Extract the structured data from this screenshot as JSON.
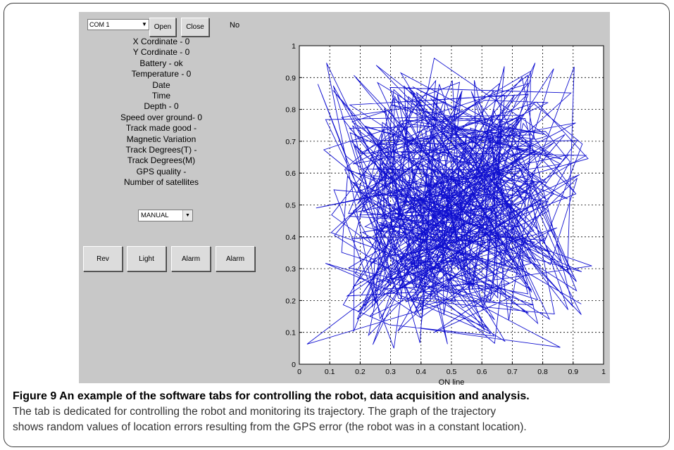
{
  "controls": {
    "port_value": "COM 1",
    "open_label": "Open",
    "close_label": "Close",
    "status_label": "No",
    "mode_value": "MANUAL",
    "rev_label": "Rev",
    "light_label": "Light",
    "alarm1_label": "Alarm",
    "alarm2_label": "Alarm"
  },
  "info_lines": [
    "X Cordinate - 0",
    "Y Cordinate - 0",
    "Battery - ok",
    "Temperature - 0",
    "Date",
    "Time",
    "Depth - 0",
    "Speed over ground- 0",
    "Track made good -",
    "Magnetic Variation",
    "Track Degrees(T) -",
    "Track Degrees(M)",
    "GPS quality -",
    "Number of satellites"
  ],
  "plot": {
    "xlabel": "ON line",
    "xlim": [
      0,
      1
    ],
    "ylim": [
      0,
      1
    ],
    "xticks": [
      "0",
      "0.1",
      "0.2",
      "0.3",
      "0.4",
      "0.5",
      "0.6",
      "0.7",
      "0.8",
      "0.9",
      "1"
    ],
    "yticks": [
      "0",
      "0.1",
      "0.2",
      "0.3",
      "0.4",
      "0.5",
      "0.6",
      "0.7",
      "0.8",
      "0.9",
      "1"
    ],
    "grid": true,
    "line_color": "#1010d0",
    "trajectory_points": 500,
    "trajectory_seed": 9
  },
  "caption": {
    "title": "Figure 9 An example of the software tabs for controlling the robot, data acquisition and analysis.",
    "line1": "The tab is dedicated for controlling the robot and monitoring its trajectory. The graph of the trajectory",
    "line2": "shows random values of location errors resulting from the GPS error (the robot was in a constant location)."
  }
}
